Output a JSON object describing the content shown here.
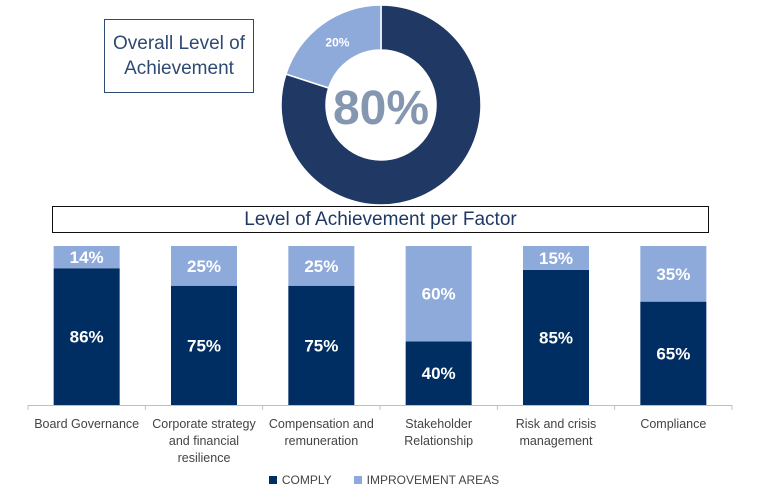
{
  "overall": {
    "title": "Overall Level of Achievement",
    "center_label": "80%",
    "improvement_label": "20%"
  },
  "factor_title": "Level of Achievement per Factor",
  "colors": {
    "comply": "#002d62",
    "improvement": "#8eaadb",
    "donut_comply": "#203864",
    "center_text": "#8496b0"
  },
  "chart_data": [
    {
      "type": "pie",
      "categories": [
        "Comply",
        "Improvement"
      ],
      "values": [
        80,
        20
      ],
      "labels": [
        "80%",
        "20%"
      ]
    },
    {
      "type": "bar",
      "stacked": true,
      "categories": [
        [
          "Board Governance"
        ],
        [
          "Corporate strategy",
          "and financial",
          "resilience"
        ],
        [
          "Compensation and",
          "remuneration"
        ],
        [
          "Stakeholder",
          "Relationship"
        ],
        [
          "Risk and crisis",
          "management"
        ],
        [
          "Compliance"
        ]
      ],
      "series": [
        {
          "name": "COMPLY",
          "values": [
            86,
            75,
            75,
            40,
            85,
            65
          ],
          "labels": [
            "86%",
            "75%",
            "75%",
            "40%",
            "85%",
            "65%"
          ]
        },
        {
          "name": "IMPROVEMENT AREAS",
          "values": [
            14,
            25,
            25,
            60,
            15,
            35
          ],
          "labels": [
            "14%",
            "25%",
            "25%",
            "60%",
            "15%",
            "35%"
          ]
        }
      ],
      "ylim": [
        0,
        100
      ],
      "grid": false,
      "legend": "bottom"
    }
  ]
}
